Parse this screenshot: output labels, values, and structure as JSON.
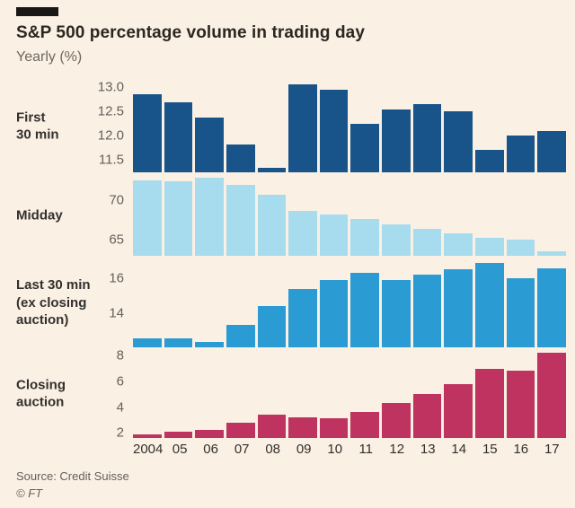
{
  "header": {
    "title": "S&P 500 percentage volume in trading day",
    "subtitle": "Yearly (%)"
  },
  "footer": {
    "source": "Source: Credit Suisse",
    "copyright": "© FT"
  },
  "colors": {
    "background": "#FAF0E4",
    "dark_blue": "#18548A",
    "light_blue": "#A7DCEF",
    "mid_blue": "#2A9BD3",
    "claret": "#BE335F",
    "text_dark": "#33302E",
    "text_gray": "#66605C"
  },
  "chart_data": {
    "type": "bar",
    "title": "S&P 500 percentage volume in trading day",
    "subtitle": "Yearly (%)",
    "legend_position": "none",
    "grid": false,
    "categories": [
      "2004",
      "05",
      "06",
      "07",
      "08",
      "09",
      "10",
      "11",
      "12",
      "13",
      "14",
      "15",
      "16",
      "17"
    ],
    "panels": [
      {
        "id": "first-30-min",
        "label": "First 30 min",
        "label_lines": [
          "First",
          "30 min"
        ],
        "color": "#18548A",
        "ymin": 11.25,
        "ymax": 13.15,
        "ticks": [
          11.5,
          12.0,
          12.5,
          13.0
        ],
        "tick_labels": [
          "11.5",
          "12.0",
          "12.5",
          "13.0"
        ],
        "values": [
          12.85,
          12.68,
          12.37,
          11.82,
          11.35,
          13.05,
          12.95,
          12.25,
          12.55,
          12.65,
          12.5,
          11.72,
          12.0,
          12.1
        ]
      },
      {
        "id": "midday",
        "label": "Midday",
        "label_lines": [
          "Midday"
        ],
        "color": "#A7DCEF",
        "ymin": 63.0,
        "ymax": 73.3,
        "ticks": [
          65,
          70
        ],
        "tick_labels": [
          "65",
          "70"
        ],
        "values": [
          72.5,
          72.4,
          72.8,
          71.9,
          70.7,
          68.7,
          68.2,
          67.6,
          67.0,
          66.4,
          65.8,
          65.3,
          65.0,
          63.6
        ]
      },
      {
        "id": "last-30-min-ex-closing-auction",
        "label": "Last 30 min (ex closing auction)",
        "label_lines": [
          "Last 30 min",
          "(ex closing",
          "auction)"
        ],
        "color": "#2A9BD3",
        "ymin": 12.0,
        "ymax": 17.2,
        "ticks": [
          14,
          16
        ],
        "tick_labels": [
          "14",
          "16"
        ],
        "values": [
          12.5,
          12.5,
          12.3,
          13.3,
          14.4,
          15.4,
          15.9,
          16.3,
          15.9,
          16.2,
          16.5,
          16.9,
          16.0,
          16.6
        ]
      },
      {
        "id": "closing-auction",
        "label": "Closing auction",
        "label_lines": [
          "Closing",
          "auction"
        ],
        "color": "#BE335F",
        "ymin": 1.6,
        "ymax": 8.5,
        "ticks": [
          2,
          4,
          6,
          8
        ],
        "tick_labels": [
          "2",
          "4",
          "6",
          "8"
        ],
        "values": [
          1.9,
          2.1,
          2.2,
          2.8,
          3.4,
          3.2,
          3.1,
          3.6,
          4.3,
          5.0,
          5.8,
          7.0,
          6.8,
          8.2
        ]
      }
    ]
  }
}
